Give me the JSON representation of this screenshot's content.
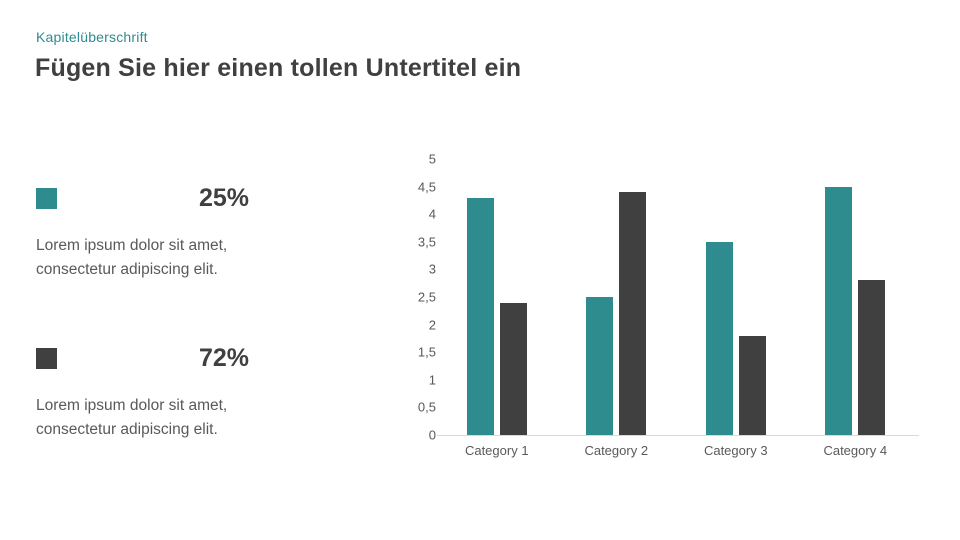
{
  "slide": {
    "eyebrow": "Kapitelüberschrift",
    "title": "Fügen Sie hier einen tollen Untertitel ein"
  },
  "stats": [
    {
      "value": "25%",
      "description": "Lorem ipsum dolor sit amet, consectetur adipiscing elit.",
      "swatch_color": "#2E8B8E"
    },
    {
      "value": "72%",
      "description": "Lorem ipsum dolor sit amet, consectetur adipiscing elit.",
      "swatch_color": "#404040"
    }
  ],
  "colors": {
    "accent_teal": "#2E8B8E",
    "dark_gray": "#404040",
    "body_text": "#595959",
    "axis_line": "#D9D9D9",
    "background": "#FFFFFF"
  },
  "chart_data": {
    "type": "bar",
    "title": "",
    "xlabel": "",
    "ylabel": "",
    "categories": [
      "Category 1",
      "Category 2",
      "Category 3",
      "Category 4"
    ],
    "series": [
      {
        "name": "series-teal",
        "color": "#2E8B8E",
        "values": [
          4.3,
          2.5,
          3.5,
          4.5
        ]
      },
      {
        "name": "series-dark",
        "color": "#404040",
        "values": [
          2.4,
          4.4,
          1.8,
          2.8
        ]
      }
    ],
    "ylim": [
      0,
      5
    ],
    "y_tick_step": 0.5,
    "y_tick_labels": [
      "0",
      "0,5",
      "1",
      "1,5",
      "2",
      "2,5",
      "3",
      "3,5",
      "4",
      "4,5",
      "5"
    ],
    "grid": false,
    "legend_position": "none",
    "decimal_separator": ","
  }
}
